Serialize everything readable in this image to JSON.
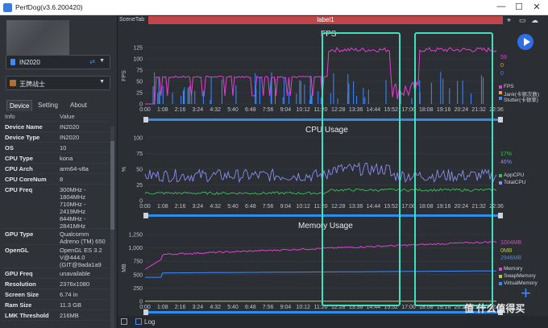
{
  "window": {
    "title": "PerfDog(v3.6.200420)",
    "minimize": "—",
    "maximize": "☐",
    "close": "✕"
  },
  "device_select": {
    "value": "IN2020"
  },
  "app_select": {
    "value": "王牌战士"
  },
  "tabs": [
    {
      "label": "Device"
    },
    {
      "label": "Setting"
    },
    {
      "label": "About"
    }
  ],
  "info": {
    "header": {
      "key": "Info",
      "value": "Value"
    },
    "rows": [
      {
        "key": "Device Name",
        "value": "IN2020"
      },
      {
        "key": "Device Type",
        "value": "IN2020"
      },
      {
        "key": "OS",
        "value": "10"
      },
      {
        "key": "CPU Type",
        "value": "kona"
      },
      {
        "key": "CPU Arch",
        "value": "arm64-v8a"
      },
      {
        "key": "CPU CoreNum",
        "value": "8"
      },
      {
        "key": "CPU Freq",
        "value": "300MHz -\n1804MHz\n710MHz -\n2419MHz\n844MHz -\n2841MHz"
      },
      {
        "key": "GPU Type",
        "value": "Qualcomm\nAdreno (TM) 650"
      },
      {
        "key": "OpenGL",
        "value": "OpenGL ES 3.2\nV@444.0\n(GIT@9ada1a9"
      },
      {
        "key": "GPU Freq",
        "value": "unavailable"
      },
      {
        "key": "Resolution",
        "value": "2376x1080"
      },
      {
        "key": "Screen Size",
        "value": "6.74 in"
      },
      {
        "key": "Ram Size",
        "value": "11.3 GB"
      },
      {
        "key": "LMK Threshold",
        "value": "216MB"
      }
    ]
  },
  "scene_tab": "SceneTab",
  "label_bar": "label1",
  "time_ticks": [
    "0:00",
    "1:08",
    "2:16",
    "3:24",
    "4:32",
    "5:40",
    "6:48",
    "7:56",
    "9:04",
    "10:12",
    "11:20",
    "12:28",
    "13:36",
    "14:44",
    "15:52",
    "17:00",
    "18:08",
    "19:16",
    "20:24",
    "21:32",
    "22:36"
  ],
  "charts": {
    "fps": {
      "title": "FPS",
      "ylabel": "FPS",
      "yticks": [
        "0",
        "25",
        "50",
        "75",
        "100",
        "125"
      ],
      "values": [
        {
          "text": "59",
          "color": "#e040d0"
        },
        {
          "text": "0",
          "color": "#e8a040"
        },
        {
          "text": "0",
          "color": "#3b8bff"
        }
      ],
      "legend": [
        {
          "text": "FPS",
          "color": "#e040d0"
        },
        {
          "text": "Jank(卡顿次数)",
          "color": "#e8a040"
        },
        {
          "text": "Stutter(卡顿率)",
          "color": "#3b8bff"
        }
      ]
    },
    "cpu": {
      "title": "CPU Usage",
      "ylabel": "%",
      "yticks": [
        "0",
        "25",
        "50",
        "75",
        "100"
      ],
      "values": [
        {
          "text": "17%",
          "color": "#3fbf5a"
        },
        {
          "text": "46%",
          "color": "#8a8cf0"
        }
      ],
      "legend": [
        {
          "text": "AppCPU",
          "color": "#3fbf5a"
        },
        {
          "text": "TotalCPU",
          "color": "#8a8cf0"
        }
      ]
    },
    "mem": {
      "title": "Memory Usage",
      "ylabel": "MB",
      "yticks": [
        "0",
        "250",
        "500",
        "750",
        "1,000",
        "1,250"
      ],
      "values": [
        {
          "text": "1004MB",
          "color": "#e040d0"
        },
        {
          "text": "0MB",
          "color": "#b8d03a"
        },
        {
          "text": "2946MB",
          "color": "#3b8bff"
        }
      ],
      "legend": [
        {
          "text": "Memory",
          "color": "#e040d0"
        },
        {
          "text": "SwapMemory",
          "color": "#b8d03a"
        },
        {
          "text": "VirtualMemory",
          "color": "#3b8bff"
        }
      ]
    }
  },
  "log_label": "Log",
  "watermark": "值 什么值得买",
  "colors": {
    "accent": "#3b8bff",
    "label_bar": "#c0464c",
    "highlight": "#3fe0c0"
  }
}
